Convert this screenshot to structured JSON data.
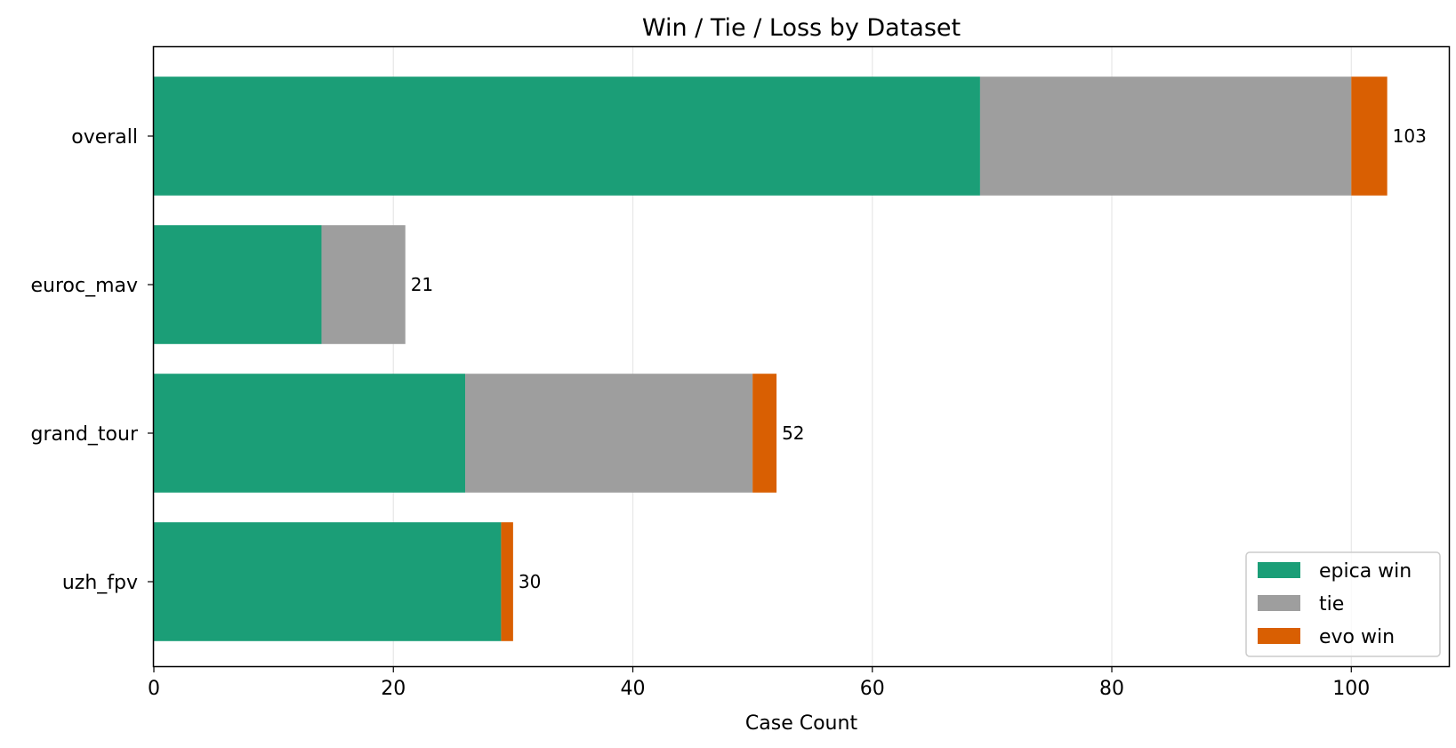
{
  "chart_data": {
    "type": "bar",
    "orientation": "horizontal",
    "stacked": true,
    "title": "Win / Tie / Loss by Dataset",
    "xlabel": "Case Count",
    "ylabel": "",
    "xlim": [
      0,
      108.15
    ],
    "xticks": [
      0,
      20,
      40,
      60,
      80,
      100
    ],
    "grid": "x",
    "categories": [
      "overall",
      "euroc_mav",
      "grand_tour",
      "uzh_fpv"
    ],
    "series": [
      {
        "name": "epica win",
        "color": "#1b9e77",
        "values": [
          69,
          14,
          26,
          29
        ]
      },
      {
        "name": "tie",
        "color": "#9e9e9e",
        "values": [
          31,
          7,
          24,
          0
        ]
      },
      {
        "name": "evo win",
        "color": "#d95f02",
        "values": [
          3,
          0,
          2,
          1
        ]
      }
    ],
    "totals": [
      "103",
      "21",
      "52",
      "30"
    ],
    "legend_position": "lower right"
  }
}
